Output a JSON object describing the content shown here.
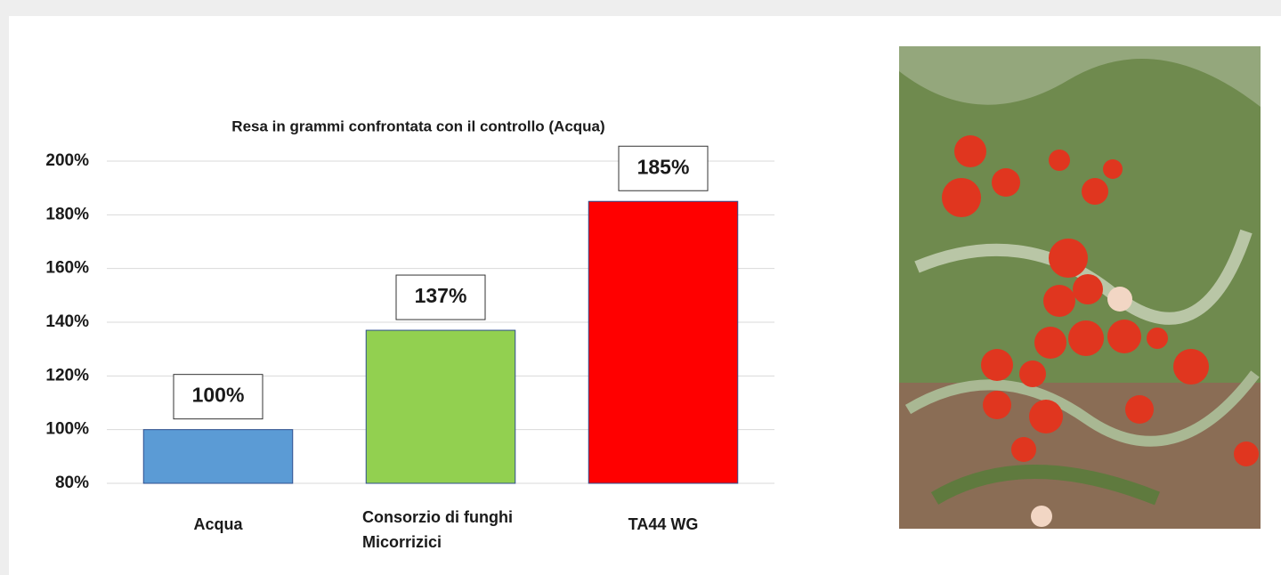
{
  "chart_data": {
    "type": "bar",
    "title": "Resa in grammi confrontata  con il controllo (Acqua)",
    "categories": [
      "Acqua",
      "Consorzio di funghi Micorrizici",
      "TA44 WG"
    ],
    "values": [
      100,
      137,
      185
    ],
    "value_labels": [
      "100%",
      "137%",
      "185%"
    ],
    "colors": [
      "#5b9bd5",
      "#92d050",
      "#ff0000"
    ],
    "ylim": [
      80,
      200
    ],
    "yticks": [
      {
        "value": 80,
        "label": "80%"
      },
      {
        "value": 100,
        "label": "100%"
      },
      {
        "value": 120,
        "label": "120%"
      },
      {
        "value": 140,
        "label": "140%"
      },
      {
        "value": 160,
        "label": "160%"
      },
      {
        "value": 180,
        "label": "180%"
      },
      {
        "value": 200,
        "label": "200%"
      }
    ],
    "grid": true
  }
}
